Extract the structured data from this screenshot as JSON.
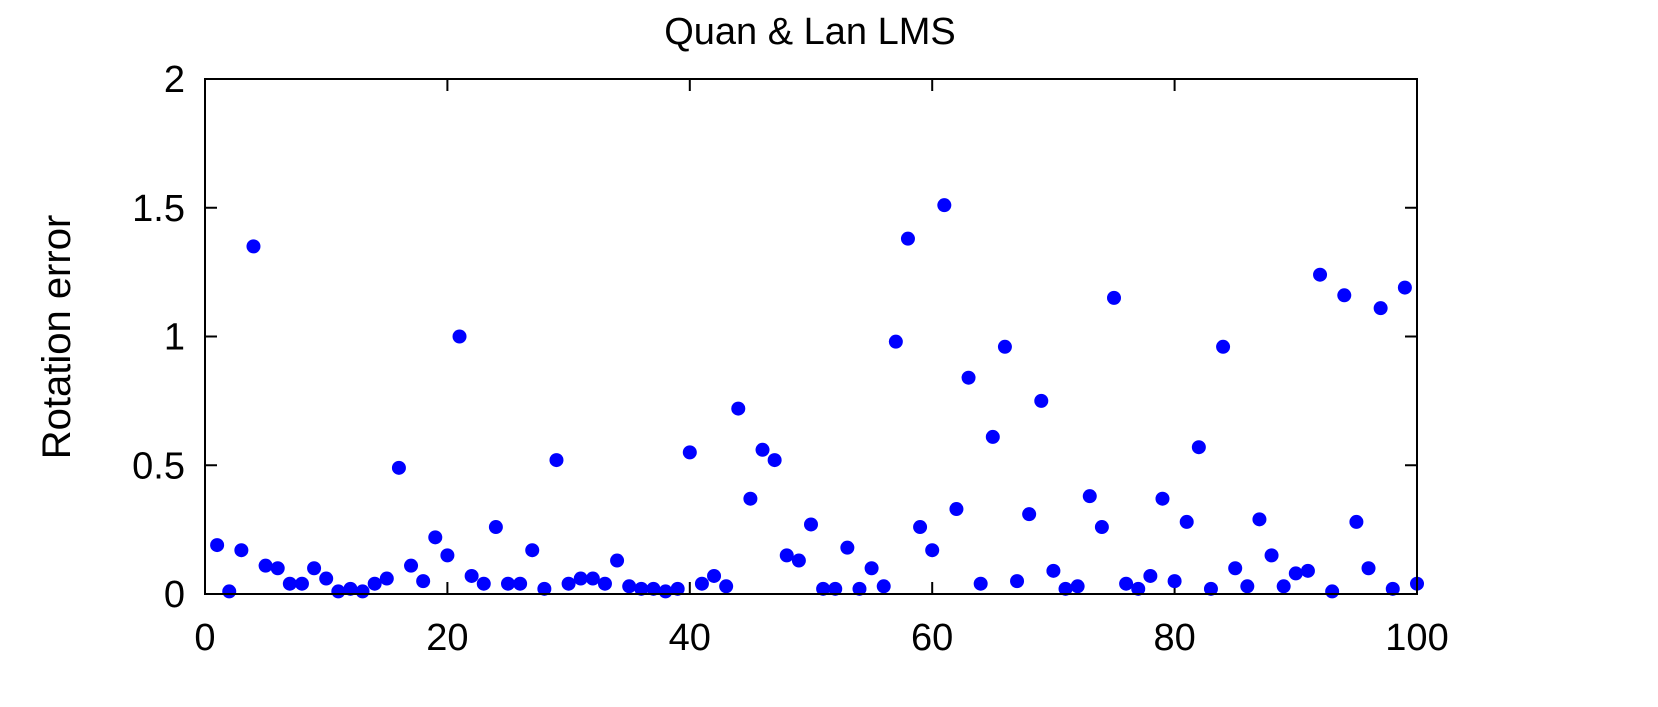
{
  "chart_data": {
    "type": "scatter",
    "title": "Quan & Lan LMS",
    "xlabel": "",
    "ylabel": "Rotation error",
    "xlim": [
      0,
      100
    ],
    "ylim": [
      0,
      2
    ],
    "x_ticks": [
      "0",
      "20",
      "40",
      "60",
      "80",
      "100"
    ],
    "y_ticks": [
      "0",
      "0.5",
      "1",
      "1.5",
      "2"
    ],
    "grid": false,
    "marker_color": "#0000ff",
    "series": [
      {
        "x": [
          1,
          2,
          3,
          4,
          5,
          6,
          7,
          8,
          9,
          10,
          11,
          12,
          13,
          14,
          15,
          16,
          17,
          18,
          19,
          20,
          21,
          22,
          23,
          24,
          25,
          26,
          27,
          28,
          29,
          30,
          31,
          32,
          33,
          34,
          35,
          36,
          37,
          38,
          39,
          40,
          41,
          42,
          43,
          44,
          45,
          46,
          47,
          48,
          49,
          50,
          51,
          52,
          53,
          54,
          55,
          56,
          57,
          58,
          59,
          60,
          61,
          62,
          63,
          64,
          65,
          66,
          67,
          68,
          69,
          70,
          71,
          72,
          73,
          74,
          75,
          76,
          77,
          78,
          79,
          80,
          81,
          82,
          83,
          84,
          85,
          86,
          87,
          88,
          89,
          90,
          91,
          92,
          93,
          94,
          95,
          96,
          97,
          98,
          99,
          100
        ],
        "y": [
          0.19,
          0.01,
          0.17,
          1.35,
          0.11,
          0.1,
          0.04,
          0.04,
          0.1,
          0.06,
          0.01,
          0.02,
          0.01,
          0.04,
          0.06,
          0.49,
          0.11,
          0.05,
          0.22,
          0.15,
          1.0,
          0.07,
          0.04,
          0.26,
          0.04,
          0.04,
          0.17,
          0.02,
          0.52,
          0.04,
          0.06,
          0.06,
          0.04,
          0.13,
          0.03,
          0.02,
          0.02,
          0.01,
          0.02,
          0.55,
          0.04,
          0.07,
          0.03,
          0.72,
          0.37,
          0.56,
          0.52,
          0.15,
          0.13,
          0.27,
          0.02,
          0.02,
          0.18,
          0.02,
          0.1,
          0.03,
          0.98,
          1.38,
          0.26,
          0.17,
          1.51,
          0.33,
          0.84,
          0.04,
          0.61,
          0.96,
          0.05,
          0.31,
          0.75,
          0.09,
          0.02,
          0.03,
          0.38,
          0.26,
          1.15,
          0.04,
          0.02,
          0.07,
          0.37,
          0.05,
          0.28,
          0.57,
          0.02,
          0.96,
          0.1,
          0.03,
          0.29,
          0.15,
          0.03,
          0.08,
          0.09,
          1.24,
          0.01,
          1.16,
          0.28,
          0.1,
          1.11,
          0.02,
          1.19,
          0.04
        ]
      }
    ]
  }
}
